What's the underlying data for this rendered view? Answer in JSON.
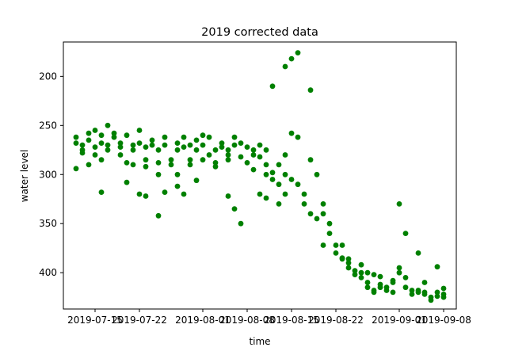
{
  "chart_data": {
    "type": "scatter",
    "title": "2019 corrected data",
    "xlabel": "time",
    "ylabel": "water level",
    "y_inverted": true,
    "ylim": [
      437,
      165
    ],
    "xlim": [
      "2019-07-10",
      "2019-09-10"
    ],
    "x_ticks": [
      "2019-07-15",
      "2019-07-22",
      "2019-08-01",
      "2019-08-08",
      "2019-08-15",
      "2019-08-22",
      "2019-09-01",
      "2019-09-08"
    ],
    "y_ticks": [
      200,
      250,
      300,
      350,
      400
    ],
    "grid": false,
    "marker_color": "#008000",
    "x": [
      "2019-07-12",
      "2019-07-12",
      "2019-07-12",
      "2019-07-13",
      "2019-07-13",
      "2019-07-13",
      "2019-07-14",
      "2019-07-14",
      "2019-07-14",
      "2019-07-15",
      "2019-07-15",
      "2019-07-15",
      "2019-07-16",
      "2019-07-16",
      "2019-07-16",
      "2019-07-17",
      "2019-07-17",
      "2019-07-17",
      "2019-07-18",
      "2019-07-18",
      "2019-07-19",
      "2019-07-19",
      "2019-07-19",
      "2019-07-20",
      "2019-07-20",
      "2019-07-21",
      "2019-07-21",
      "2019-07-21",
      "2019-07-22",
      "2019-07-22",
      "2019-07-23",
      "2019-07-23",
      "2019-07-23",
      "2019-07-24",
      "2019-07-24",
      "2019-07-25",
      "2019-07-25",
      "2019-07-25",
      "2019-07-26",
      "2019-07-26",
      "2019-07-27",
      "2019-07-27",
      "2019-07-28",
      "2019-07-28",
      "2019-07-28",
      "2019-07-29",
      "2019-07-29",
      "2019-07-30",
      "2019-07-30",
      "2019-07-30",
      "2019-07-31",
      "2019-07-31",
      "2019-08-01",
      "2019-08-01",
      "2019-08-01",
      "2019-08-02",
      "2019-08-02",
      "2019-08-03",
      "2019-08-03",
      "2019-08-03",
      "2019-08-04",
      "2019-08-04",
      "2019-08-05",
      "2019-08-05",
      "2019-08-05",
      "2019-08-06",
      "2019-08-06",
      "2019-08-07",
      "2019-08-07",
      "2019-08-08",
      "2019-08-08",
      "2019-08-09",
      "2019-08-09",
      "2019-08-09",
      "2019-08-10",
      "2019-08-10",
      "2019-08-11",
      "2019-08-11",
      "2019-08-11",
      "2019-08-12",
      "2019-08-12",
      "2019-08-13",
      "2019-08-13",
      "2019-08-14",
      "2019-08-14",
      "2019-08-14",
      "2019-08-15",
      "2019-08-15",
      "2019-08-16",
      "2019-08-16",
      "2019-08-17",
      "2019-08-17",
      "2019-08-18",
      "2019-08-18",
      "2019-08-19",
      "2019-08-19",
      "2019-08-20",
      "2019-08-20",
      "2019-08-21",
      "2019-08-21",
      "2019-08-22",
      "2019-08-22",
      "2019-08-23",
      "2019-08-23",
      "2019-08-24",
      "2019-08-24",
      "2019-08-25",
      "2019-08-25",
      "2019-08-26",
      "2019-08-26",
      "2019-08-27",
      "2019-08-27",
      "2019-08-28",
      "2019-08-28",
      "2019-08-29",
      "2019-08-29",
      "2019-08-30",
      "2019-08-30",
      "2019-08-31",
      "2019-08-31",
      "2019-09-01",
      "2019-09-01",
      "2019-09-02",
      "2019-09-02",
      "2019-09-03",
      "2019-09-03",
      "2019-09-04",
      "2019-09-04",
      "2019-09-05",
      "2019-09-05",
      "2019-09-06",
      "2019-09-06",
      "2019-09-07",
      "2019-09-07",
      "2019-09-08",
      "2019-09-08",
      "2019-07-16",
      "2019-07-20",
      "2019-07-22",
      "2019-07-23",
      "2019-07-25",
      "2019-07-26",
      "2019-07-28",
      "2019-07-29",
      "2019-07-31",
      "2019-08-05",
      "2019-08-06",
      "2019-08-07",
      "2019-08-10",
      "2019-08-11",
      "2019-08-12",
      "2019-08-13",
      "2019-08-14",
      "2019-08-15",
      "2019-08-16",
      "2019-08-18",
      "2019-08-20",
      "2019-08-23",
      "2019-08-24",
      "2019-08-26",
      "2019-08-27",
      "2019-08-28",
      "2019-08-29",
      "2019-08-31",
      "2019-09-01",
      "2019-09-02",
      "2019-09-04",
      "2019-09-05",
      "2019-09-07",
      "2019-09-08"
    ],
    "y": [
      262,
      268,
      294,
      270,
      275,
      278,
      265,
      258,
      290,
      272,
      255,
      280,
      260,
      268,
      285,
      250,
      270,
      275,
      262,
      258,
      268,
      272,
      280,
      260,
      288,
      270,
      275,
      290,
      268,
      255,
      272,
      285,
      292,
      270,
      265,
      288,
      275,
      300,
      270,
      262,
      285,
      290,
      275,
      268,
      300,
      272,
      262,
      285,
      270,
      290,
      275,
      265,
      260,
      285,
      270,
      280,
      262,
      275,
      288,
      292,
      268,
      272,
      285,
      275,
      280,
      262,
      270,
      282,
      268,
      272,
      288,
      275,
      280,
      295,
      282,
      270,
      275,
      300,
      290,
      305,
      298,
      290,
      310,
      280,
      320,
      300,
      258,
      305,
      262,
      310,
      320,
      330,
      285,
      340,
      300,
      345,
      330,
      340,
      360,
      350,
      372,
      380,
      385,
      372,
      390,
      395,
      402,
      398,
      400,
      405,
      410,
      415,
      418,
      420,
      415,
      412,
      418,
      415,
      410,
      420,
      400,
      395,
      405,
      415,
      418,
      422,
      420,
      418,
      422,
      420,
      425,
      428,
      424,
      420,
      422,
      425,
      318,
      308,
      320,
      322,
      342,
      318,
      312,
      320,
      306,
      322,
      335,
      350,
      320,
      324,
      210,
      330,
      190,
      182,
      176,
      214,
      372,
      386,
      386,
      392,
      400,
      402,
      404,
      408,
      330,
      360,
      380,
      410,
      394,
      416
    ]
  }
}
